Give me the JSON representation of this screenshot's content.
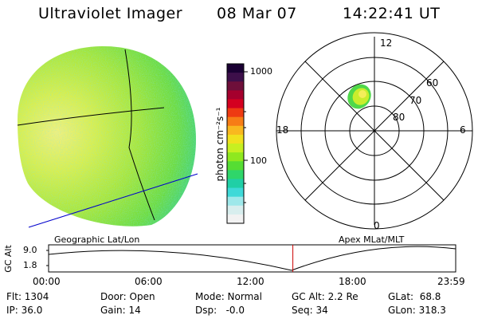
{
  "header": {
    "instrument": "Ultraviolet Imager",
    "date": "08 Mar 07",
    "time": "14:22:41 UT"
  },
  "colorbar": {
    "unit_label": "photon cm⁻²s⁻¹",
    "tick_labels": [
      "1000",
      "100"
    ],
    "colors_top_to_bottom": [
      "#1a0033",
      "#3d0f4a",
      "#6e0f3a",
      "#a5002d",
      "#d40020",
      "#ee3a12",
      "#f77d16",
      "#f9b81f",
      "#f0e11e",
      "#c7ef21",
      "#8fe81f",
      "#56dd33",
      "#2fd66a",
      "#20cfa6",
      "#3ed9d8",
      "#9ee8ea",
      "#d8eeee",
      "#f2f2f2"
    ]
  },
  "polar_plot": {
    "mlt_labels": {
      "top": "12",
      "left": "18",
      "right": "6",
      "bottom": "0"
    },
    "lat_labels": [
      "60",
      "70",
      "80"
    ]
  },
  "timeline": {
    "left_caption": "Geographic Lat/Lon",
    "right_caption": "Apex MLat/MLT",
    "axis_title": "GC Alt",
    "y_ticks": [
      "9.0",
      "1.8"
    ],
    "x_ticks": [
      "00:00",
      "06:00",
      "12:00",
      "18:00",
      "23:59"
    ],
    "current_time_fraction": 0.6
  },
  "status": {
    "row1": {
      "flt": "Flt: 1304",
      "door": "Door: Open",
      "mode": "Mode: Normal",
      "gc_alt": "GC Alt: 2.2 Re",
      "glat": "GLat:  68.8"
    },
    "row2": {
      "ip": "IP: 36.0",
      "gain": "Gain: 14",
      "dsp": "Dsp:   -0.0",
      "seq": "Seq: 34",
      "glon": "GLon: 318.3"
    }
  },
  "colors": {
    "geo_grid": "#000000",
    "boundary_line": "#0000cc",
    "time_marker": "#cc0000"
  }
}
